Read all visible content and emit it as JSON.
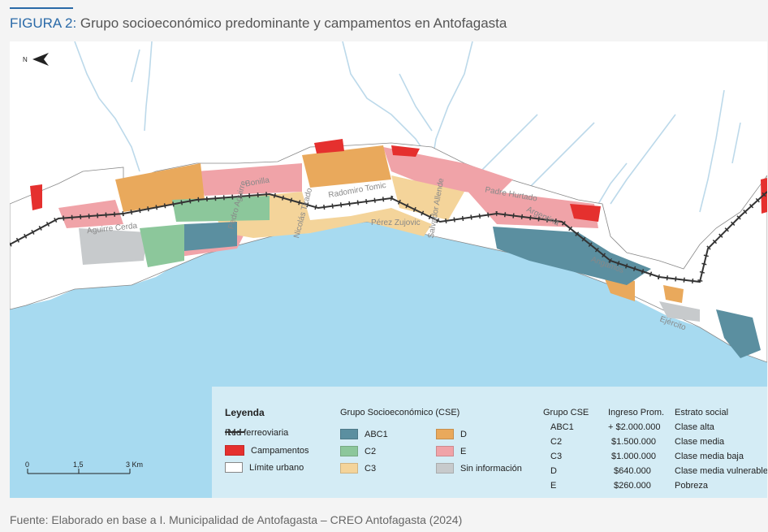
{
  "figure": {
    "label": "FIGURA 2:",
    "title": "Grupo socioeconómico predominante y campamentos en Antofagasta"
  },
  "map": {
    "north_label": "N",
    "streets": [
      "Aguirre Cerda",
      "Bonilla",
      "Pedro Aguirre",
      "Nicolás Tirado",
      "Radomiro Tomic",
      "Pérez Zujovic",
      "Salvador Allende",
      "Padre Hurtado",
      "Argentina",
      "Angamos",
      "Ejército"
    ],
    "colors": {
      "sea": "#a7daf0",
      "ABC1": "#5b8fa0",
      "C2": "#8cc79b",
      "C3": "#f4d49a",
      "D": "#e9a95c",
      "E": "#f0a3a8",
      "sin_info": "#c7cacc",
      "campamentos": "#e5302e",
      "rail": "#333333"
    }
  },
  "legend": {
    "title": "Leyenda",
    "items": [
      "Red ferreoviaria",
      "Campamentos",
      "Límite urbano"
    ],
    "cse_title": "Grupo Socioeconómico (CSE)",
    "cse_items": [
      "ABC1",
      "C2",
      "C3",
      "D",
      "E",
      "Sin información"
    ],
    "scale": {
      "ticks": [
        "0",
        "1,5",
        "3 Km"
      ]
    },
    "table": {
      "headers": [
        "Grupo CSE",
        "Ingreso Prom.",
        "Estrato social"
      ],
      "rows": [
        [
          "ABC1",
          "+ $2.000.000",
          "Clase alta"
        ],
        [
          "C2",
          "$1.500.000",
          "Clase media"
        ],
        [
          "C3",
          "$1.000.000",
          "Clase media baja"
        ],
        [
          "D",
          "$640.000",
          "Clase media vulnerable"
        ],
        [
          "E",
          "$260.000",
          "Pobreza"
        ]
      ]
    }
  },
  "source": "Fuente: Elaborado en base a I. Municipalidad de Antofagasta – CREO Antofagasta (2024)"
}
